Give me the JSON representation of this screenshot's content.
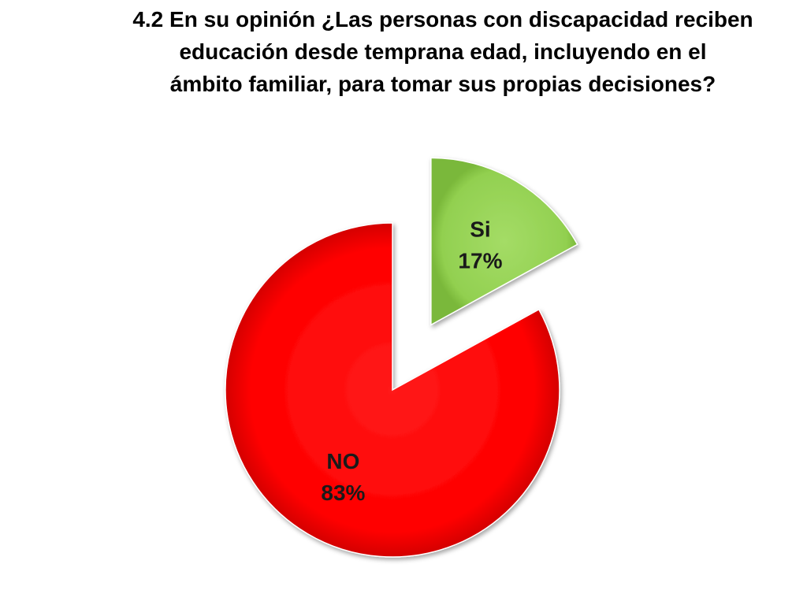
{
  "chart_data": {
    "type": "pie",
    "title_lines": [
      "4.2  En su opinión ¿Las personas con discapacidad reciben",
      "educación desde temprana edad, incluyendo  en el",
      "ámbito familiar, para tomar sus propias decisiones?"
    ],
    "slices": [
      {
        "name": "Si",
        "value": 17,
        "label": "17%",
        "color": "#92d050",
        "exploded": true
      },
      {
        "name": "NO",
        "value": 83,
        "label": "83%",
        "color": "#ff0000",
        "exploded": false
      }
    ],
    "start": "top",
    "direction": "clockwise",
    "legend": "none"
  }
}
